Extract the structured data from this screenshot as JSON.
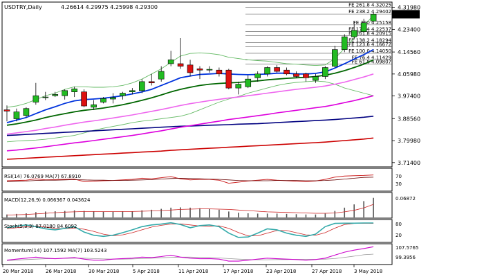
{
  "header": {
    "symbol": "USDTRY,Daily",
    "ohlc": "4.26614 4.29975 4.25998 4.29300"
  },
  "price_panel": {
    "current_price": "4.29300",
    "y_ticks": [
      "4.31980",
      "4.23400",
      "4.14560",
      "4.05980",
      "3.97400",
      "3.88560",
      "3.79980",
      "3.71400"
    ],
    "fib_labels": [
      {
        "text": "FE 261.8 4.32025",
        "y": 4.32025
      },
      {
        "text": "FE 238.2 4.29402",
        "y": 4.29402
      },
      {
        "text": "FE 200 4.25158",
        "y": 4.25158
      },
      {
        "text": "FE 176.4 4.22537",
        "y": 4.22537
      },
      {
        "text": "FE 161.8 4.20915",
        "y": 4.20915
      },
      {
        "text": "FE 138.2 4.18294",
        "y": 4.18294
      },
      {
        "text": "FE 123.6 4.16672",
        "y": 4.16672
      },
      {
        "text": "FE 100.0 4.14050",
        "y": 4.1405
      },
      {
        "text": "FE 76.4 4.11429",
        "y": 4.11429
      },
      {
        "text": "FE 61.8 4.09807",
        "y": 4.09807
      }
    ]
  },
  "x_axis": {
    "labels": [
      "20 Mar 2018",
      "26 Mar 2018",
      "30 Mar 2018",
      "5 Apr 2018",
      "11 Apr 2018",
      "17 Apr 2018",
      "23 Apr 2018",
      "27 Apr 2018",
      "3 May 2018"
    ]
  },
  "indicators": {
    "rsi": {
      "label": "RSI(14) 76.0769 MA(7) 67.8910",
      "ticks": [
        "70",
        "30"
      ]
    },
    "macd": {
      "label": "MACD(12,26,9) 0.066367 0.043624",
      "ticks": [
        "0.06872"
      ]
    },
    "stoch": {
      "label": "Stoch(5,3,3) 87.0180 84.6092",
      "ticks": [
        "80",
        "20"
      ]
    },
    "momentum": {
      "label": "Momentum(14) 107.1592 MA(7) 103.5243",
      "ticks": [
        "107.5765",
        "99.3956"
      ]
    }
  },
  "colors": {
    "bull": "#22bb22",
    "bear": "#dd1111",
    "sma_blue": "#0033dd",
    "sma_green": "#006600",
    "sma_pink": "#ee66ee",
    "sma_magenta": "#dd00dd",
    "sma_navy": "#000080",
    "sma_red": "#cc0000",
    "bb": "#66bb66",
    "rsi": "#cc2222",
    "macd_bar": "#555555",
    "stoch_main": "#33aaaa",
    "stoch_signal": "#cc2222",
    "momentum": "#cc00cc",
    "fib": "#555555"
  },
  "chart_data": {
    "type": "candlestick",
    "title": "USDTRY,Daily",
    "ylim": [
      3.7,
      4.335
    ],
    "candles": [
      {
        "o": 3.92,
        "h": 3.937,
        "l": 3.875,
        "c": 3.915
      },
      {
        "o": 3.885,
        "h": 3.925,
        "l": 3.875,
        "c": 3.912
      },
      {
        "o": 3.898,
        "h": 3.93,
        "l": 3.89,
        "c": 3.925
      },
      {
        "o": 3.95,
        "h": 4.025,
        "l": 3.94,
        "c": 3.975
      },
      {
        "o": 3.97,
        "h": 3.99,
        "l": 3.958,
        "c": 3.97
      },
      {
        "o": 3.975,
        "h": 3.99,
        "l": 3.97,
        "c": 3.98
      },
      {
        "o": 3.975,
        "h": 4.0,
        "l": 3.96,
        "c": 3.995
      },
      {
        "o": 3.99,
        "h": 4.01,
        "l": 3.97,
        "c": 4.002
      },
      {
        "o": 3.99,
        "h": 4.0,
        "l": 3.93,
        "c": 3.935
      },
      {
        "o": 3.93,
        "h": 3.958,
        "l": 3.92,
        "c": 3.94
      },
      {
        "o": 3.95,
        "h": 3.97,
        "l": 3.945,
        "c": 3.964
      },
      {
        "o": 3.962,
        "h": 3.985,
        "l": 3.945,
        "c": 3.968
      },
      {
        "o": 3.975,
        "h": 3.99,
        "l": 3.96,
        "c": 3.985
      },
      {
        "o": 3.99,
        "h": 4.005,
        "l": 3.98,
        "c": 3.995
      },
      {
        "o": 3.995,
        "h": 4.04,
        "l": 3.985,
        "c": 4.03
      },
      {
        "o": 4.03,
        "h": 4.06,
        "l": 4.015,
        "c": 4.025
      },
      {
        "o": 4.04,
        "h": 4.09,
        "l": 4.03,
        "c": 4.07
      },
      {
        "o": 4.1,
        "h": 4.15,
        "l": 4.09,
        "c": 4.115
      },
      {
        "o": 4.1,
        "h": 4.2,
        "l": 4.08,
        "c": 4.09
      },
      {
        "o": 4.095,
        "h": 4.115,
        "l": 4.05,
        "c": 4.065
      },
      {
        "o": 4.08,
        "h": 4.09,
        "l": 4.04,
        "c": 4.075
      },
      {
        "o": 4.075,
        "h": 4.09,
        "l": 4.065,
        "c": 4.078
      },
      {
        "o": 4.075,
        "h": 4.085,
        "l": 4.05,
        "c": 4.06
      },
      {
        "o": 4.075,
        "h": 4.08,
        "l": 4.0,
        "c": 4.005
      },
      {
        "o": 4.005,
        "h": 4.03,
        "l": 3.98,
        "c": 4.02
      },
      {
        "o": 4.01,
        "h": 4.055,
        "l": 4.005,
        "c": 4.04
      },
      {
        "o": 4.045,
        "h": 4.07,
        "l": 4.03,
        "c": 4.06
      },
      {
        "o": 4.06,
        "h": 4.09,
        "l": 4.05,
        "c": 4.085
      },
      {
        "o": 4.085,
        "h": 4.095,
        "l": 4.065,
        "c": 4.07
      },
      {
        "o": 4.075,
        "h": 4.085,
        "l": 4.055,
        "c": 4.06
      },
      {
        "o": 4.06,
        "h": 4.07,
        "l": 4.045,
        "c": 4.05
      },
      {
        "o": 4.06,
        "h": 4.065,
        "l": 4.03,
        "c": 4.045
      },
      {
        "o": 4.035,
        "h": 4.06,
        "l": 4.025,
        "c": 4.05
      },
      {
        "o": 4.05,
        "h": 4.09,
        "l": 4.04,
        "c": 4.085
      },
      {
        "o": 4.09,
        "h": 4.17,
        "l": 4.085,
        "c": 4.155
      },
      {
        "o": 4.155,
        "h": 4.215,
        "l": 4.145,
        "c": 4.205
      },
      {
        "o": 4.205,
        "h": 4.265,
        "l": 4.195,
        "c": 4.23
      },
      {
        "o": 4.225,
        "h": 4.275,
        "l": 4.22,
        "c": 4.26
      },
      {
        "o": 4.266,
        "h": 4.3,
        "l": 4.26,
        "c": 4.293
      }
    ],
    "sma_blue": [
      3.87,
      3.88,
      3.89,
      3.905,
      3.92,
      3.932,
      3.945,
      3.955,
      3.96,
      3.962,
      3.965,
      3.97,
      3.975,
      3.982,
      3.99,
      4.0,
      4.015,
      4.03,
      4.045,
      4.052,
      4.058,
      4.06,
      4.062,
      4.06,
      4.058,
      4.057,
      4.058,
      4.06,
      4.063,
      4.063,
      4.06,
      4.06,
      4.062,
      4.068,
      4.083,
      4.1,
      4.118,
      4.135,
      4.155
    ],
    "sma_green": [
      3.86,
      3.865,
      3.872,
      3.88,
      3.89,
      3.898,
      3.905,
      3.912,
      3.918,
      3.922,
      3.927,
      3.933,
      3.94,
      3.948,
      3.957,
      3.967,
      3.978,
      3.99,
      4.0,
      4.008,
      4.015,
      4.02,
      4.023,
      4.025,
      4.027,
      4.03,
      4.033,
      4.037,
      4.04,
      4.043,
      4.045,
      4.047,
      4.05,
      4.055,
      4.063,
      4.073,
      4.085,
      4.098,
      4.115
    ],
    "sma_pink": [
      3.825,
      3.83,
      3.835,
      3.84,
      3.847,
      3.853,
      3.86,
      3.866,
      3.872,
      3.877,
      3.882,
      3.888,
      3.894,
      3.9,
      3.907,
      3.914,
      3.921,
      3.929,
      3.937,
      3.944,
      3.95,
      3.956,
      3.961,
      3.966,
      3.97,
      3.975,
      3.98,
      3.985,
      3.99,
      3.995,
      4.0,
      4.004,
      4.008,
      4.013,
      4.02,
      4.028,
      4.038,
      4.048,
      4.06
    ],
    "sma_magenta": [
      3.76,
      3.763,
      3.767,
      3.771,
      3.776,
      3.781,
      3.786,
      3.791,
      3.795,
      3.8,
      3.805,
      3.81,
      3.815,
      3.82,
      3.826,
      3.832,
      3.838,
      3.845,
      3.852,
      3.858,
      3.864,
      3.87,
      3.876,
      3.882,
      3.887,
      3.892,
      3.897,
      3.902,
      3.908,
      3.913,
      3.918,
      3.923,
      3.928,
      3.933,
      3.94,
      3.948,
      3.956,
      3.965,
      3.975
    ],
    "sma_navy": [
      3.82,
      3.822,
      3.824,
      3.826,
      3.828,
      3.83,
      3.832,
      3.834,
      3.836,
      3.838,
      3.84,
      3.842,
      3.844,
      3.846,
      3.848,
      3.85,
      3.852,
      3.854,
      3.856,
      3.857,
      3.858,
      3.86,
      3.861,
      3.862,
      3.864,
      3.865,
      3.866,
      3.868,
      3.87,
      3.872,
      3.874,
      3.876,
      3.878,
      3.88,
      3.882,
      3.885,
      3.888,
      3.891,
      3.895
    ],
    "sma_red": [
      3.727,
      3.729,
      3.731,
      3.733,
      3.735,
      3.737,
      3.739,
      3.741,
      3.743,
      3.745,
      3.747,
      3.749,
      3.751,
      3.753,
      3.755,
      3.757,
      3.759,
      3.762,
      3.764,
      3.766,
      3.768,
      3.77,
      3.772,
      3.774,
      3.776,
      3.778,
      3.78,
      3.782,
      3.784,
      3.786,
      3.788,
      3.79,
      3.792,
      3.794,
      3.797,
      3.8,
      3.803,
      3.806,
      3.81
    ],
    "bb_upper": [
      3.93,
      3.935,
      3.945,
      3.96,
      3.975,
      3.985,
      4.0,
      4.01,
      4.01,
      4.008,
      4.008,
      4.01,
      4.015,
      4.025,
      4.04,
      4.06,
      4.08,
      4.105,
      4.13,
      4.14,
      4.142,
      4.14,
      4.135,
      4.125,
      4.12,
      4.115,
      4.112,
      4.11,
      4.105,
      4.1,
      4.098,
      4.095,
      4.093,
      4.095,
      4.12,
      4.16,
      4.2,
      4.245,
      4.29
    ],
    "bb_lower": [
      3.795,
      3.798,
      3.8,
      3.802,
      3.805,
      3.81,
      3.815,
      3.82,
      3.83,
      3.84,
      3.848,
      3.855,
      3.862,
      3.87,
      3.876,
      3.88,
      3.885,
      3.89,
      3.895,
      3.905,
      3.92,
      3.935,
      3.95,
      3.962,
      3.972,
      3.985,
      3.995,
      4.005,
      4.015,
      4.022,
      4.027,
      4.03,
      4.032,
      4.03,
      4.02,
      4.005,
      3.995,
      3.985,
      3.975
    ],
    "rsi": [
      55,
      56,
      57,
      62,
      58,
      59,
      60,
      61,
      52,
      53,
      55,
      56,
      58,
      60,
      64,
      62,
      66,
      70,
      62,
      58,
      60,
      60,
      57,
      46,
      50,
      54,
      57,
      60,
      57,
      55,
      53,
      52,
      54,
      60,
      68,
      72,
      73,
      74,
      76
    ],
    "rsi_ma": [
      52,
      53,
      54,
      56,
      57,
      57,
      58,
      59,
      58,
      57,
      57,
      56,
      56,
      57,
      58,
      59,
      61,
      63,
      64,
      63,
      62,
      61,
      60,
      58,
      56,
      55,
      55,
      55,
      56,
      56,
      56,
      55,
      55,
      56,
      58,
      61,
      64,
      67,
      68
    ],
    "macd_hist": [
      0.01,
      0.012,
      0.014,
      0.018,
      0.02,
      0.021,
      0.022,
      0.024,
      0.022,
      0.02,
      0.019,
      0.019,
      0.02,
      0.021,
      0.024,
      0.026,
      0.029,
      0.033,
      0.034,
      0.033,
      0.031,
      0.029,
      0.026,
      0.02,
      0.016,
      0.014,
      0.013,
      0.013,
      0.013,
      0.012,
      0.011,
      0.01,
      0.01,
      0.013,
      0.022,
      0.033,
      0.044,
      0.055,
      0.066
    ],
    "macd_signal": [
      0.008,
      0.009,
      0.01,
      0.012,
      0.014,
      0.016,
      0.018,
      0.019,
      0.02,
      0.02,
      0.02,
      0.02,
      0.02,
      0.02,
      0.021,
      0.022,
      0.023,
      0.025,
      0.027,
      0.028,
      0.029,
      0.029,
      0.028,
      0.027,
      0.025,
      0.023,
      0.021,
      0.019,
      0.018,
      0.017,
      0.016,
      0.015,
      0.014,
      0.014,
      0.015,
      0.019,
      0.024,
      0.032,
      0.044
    ],
    "stoch_k": [
      65,
      72,
      78,
      70,
      60,
      55,
      62,
      70,
      45,
      30,
      25,
      30,
      42,
      55,
      70,
      78,
      82,
      88,
      80,
      65,
      75,
      78,
      70,
      40,
      20,
      22,
      40,
      60,
      55,
      40,
      30,
      25,
      35,
      70,
      85,
      86,
      86,
      87,
      87
    ],
    "stoch_d": [
      60,
      65,
      70,
      72,
      68,
      62,
      60,
      64,
      58,
      48,
      35,
      28,
      32,
      42,
      55,
      68,
      76,
      82,
      83,
      78,
      73,
      72,
      74,
      62,
      43,
      27,
      27,
      40,
      52,
      52,
      42,
      32,
      30,
      42,
      63,
      80,
      85,
      86,
      85
    ],
    "momentum": [
      100.5,
      101,
      101.5,
      102,
      101.5,
      101.2,
      101.5,
      101.8,
      101,
      100.5,
      100.5,
      101,
      101.3,
      101.5,
      102,
      101.8,
      102.3,
      103,
      102,
      101.5,
      101.2,
      101.3,
      101,
      100,
      100,
      100.5,
      101,
      101.5,
      101.2,
      101,
      100.8,
      100.5,
      100.8,
      101.5,
      103,
      104.5,
      105.5,
      106.3,
      107.2
    ],
    "momentum_ma": [
      100.3,
      100.5,
      100.8,
      101,
      101.2,
      101.3,
      101.4,
      101.5,
      101.5,
      101.3,
      101.1,
      101,
      101,
      101.1,
      101.3,
      101.5,
      101.7,
      101.9,
      102,
      102,
      101.9,
      101.8,
      101.6,
      101.3,
      101,
      100.8,
      100.7,
      100.7,
      100.8,
      100.8,
      100.9,
      100.9,
      100.9,
      101,
      101.3,
      101.9,
      102.5,
      103.2,
      103.5
    ]
  }
}
